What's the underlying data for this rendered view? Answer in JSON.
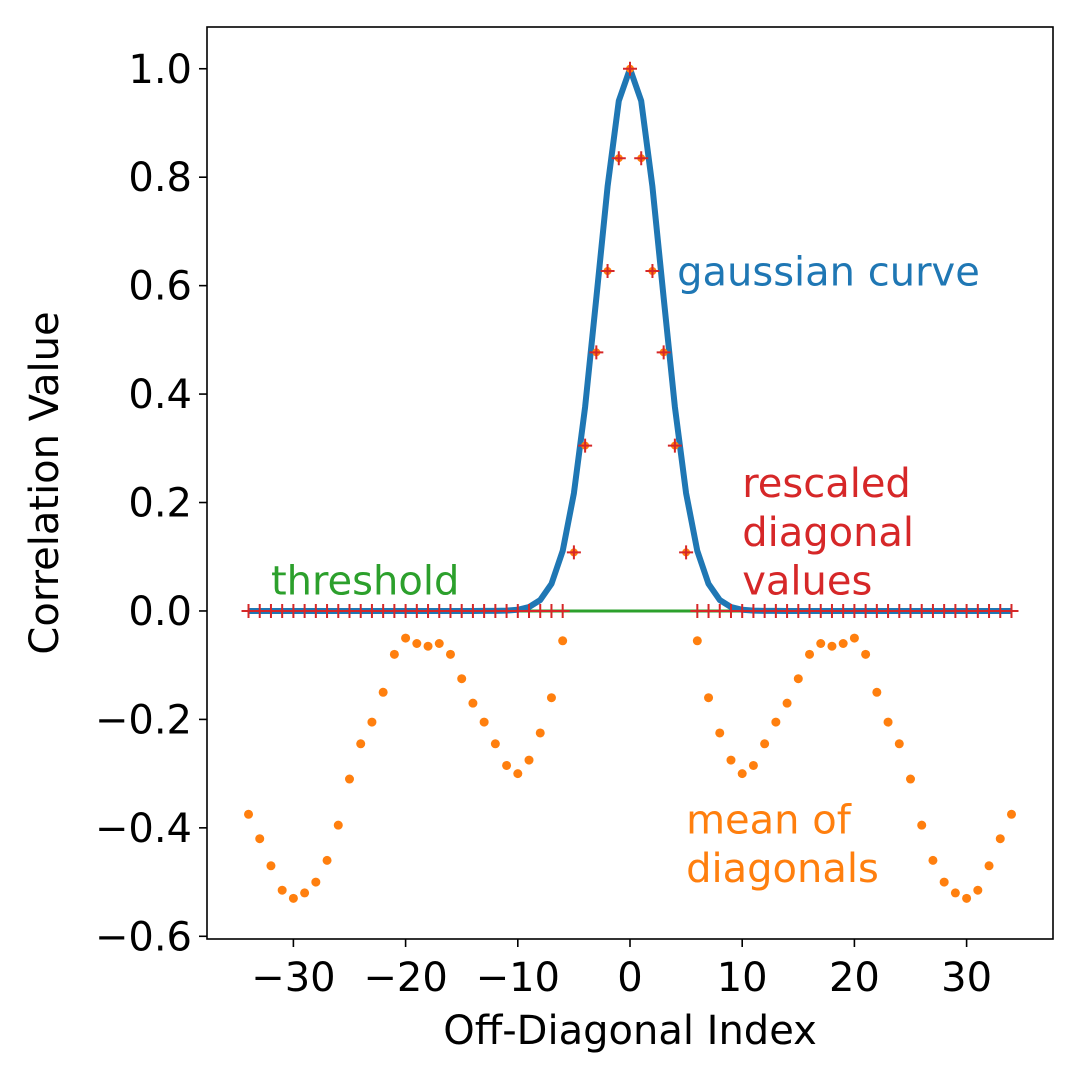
{
  "chart_data": {
    "type": "line",
    "xlabel": "Off-Diagonal Index",
    "ylabel": "Correlation Value",
    "xlim": [
      -37.7,
      37.7
    ],
    "ylim": [
      -0.605,
      1.077
    ],
    "xticks": [
      -30,
      -20,
      -10,
      0,
      10,
      20,
      30
    ],
    "xtick_labels": [
      "−30",
      "−20",
      "−10",
      "0",
      "10",
      "20",
      "30"
    ],
    "yticks": [
      -0.6,
      -0.4,
      -0.2,
      0.0,
      0.2,
      0.4,
      0.6,
      0.8,
      1.0
    ],
    "ytick_labels": [
      "−0.6",
      "−0.4",
      "−0.2",
      "0.0",
      "0.2",
      "0.4",
      "0.6",
      "0.8",
      "1.0"
    ],
    "grid": false,
    "series": [
      {
        "name": "gaussian curve",
        "style": "line",
        "color": "#1f77b4",
        "sigma": 2.86,
        "x": [
          -34,
          -33,
          -32,
          -31,
          -30,
          -29,
          -28,
          -27,
          -26,
          -25,
          -24,
          -23,
          -22,
          -21,
          -20,
          -19,
          -18,
          -17,
          -16,
          -15,
          -14,
          -13,
          -12,
          -11,
          -10,
          -9,
          -8,
          -7,
          -6,
          -5,
          -4,
          -3,
          -2,
          -1,
          0,
          1,
          2,
          3,
          4,
          5,
          6,
          7,
          8,
          9,
          10,
          11,
          12,
          13,
          14,
          15,
          16,
          17,
          18,
          19,
          20,
          21,
          22,
          23,
          24,
          25,
          26,
          27,
          28,
          29,
          30,
          31,
          32,
          33,
          34
        ]
      },
      {
        "name": "rescaled diagonal values",
        "style": "markers-plus",
        "color": "#d62728",
        "fill": "#ff7f0e",
        "x_nonzero": [
          -5,
          -4,
          -3,
          -2,
          -1,
          0,
          1,
          2,
          3,
          4,
          5
        ],
        "y_nonzero": [
          0.108,
          0.305,
          0.477,
          0.627,
          0.835,
          1.0,
          0.835,
          0.627,
          0.477,
          0.305,
          0.108
        ],
        "x_zero_ranges": [
          [
            -34,
            -6
          ],
          [
            6,
            34
          ]
        ]
      },
      {
        "name": "mean of diagonals",
        "style": "dots",
        "color": "#ff7f0e",
        "x": [
          -34,
          -33,
          -32,
          -31,
          -30,
          -29,
          -28,
          -27,
          -26,
          -25,
          -24,
          -23,
          -22,
          -21,
          -20,
          -19,
          -18,
          -17,
          -16,
          -15,
          -14,
          -13,
          -12,
          -11,
          -10,
          -9,
          -8,
          -7,
          -6
        ],
        "y": [
          -0.375,
          -0.42,
          -0.47,
          -0.515,
          -0.53,
          -0.52,
          -0.5,
          -0.46,
          -0.395,
          -0.31,
          -0.245,
          -0.205,
          -0.15,
          -0.08,
          -0.05,
          -0.06,
          -0.065,
          -0.06,
          -0.08,
          -0.125,
          -0.17,
          -0.205,
          -0.245,
          -0.285,
          -0.3,
          -0.275,
          -0.225,
          -0.16,
          -0.055
        ]
      },
      {
        "name": "threshold",
        "style": "hline",
        "color": "#2ca02c",
        "y": 0.0,
        "x_range": [
          -34,
          34
        ]
      }
    ],
    "annotations": [
      {
        "text": "gaussian curve",
        "color": "#1f77b4",
        "x": 4.2,
        "y": 0.6
      },
      {
        "text": "rescaled",
        "color": "#d62728",
        "x": 10,
        "y": 0.21
      },
      {
        "text": "diagonal",
        "color": "#d62728",
        "x": 10,
        "y": 0.12
      },
      {
        "text": "values",
        "color": "#d62728",
        "x": 10,
        "y": 0.03
      },
      {
        "text": "threshold",
        "color": "#2ca02c",
        "x": -32,
        "y": 0.03
      },
      {
        "text": "mean of",
        "color": "#ff7f0e",
        "x": 5,
        "y": -0.41
      },
      {
        "text": "diagonals",
        "color": "#ff7f0e",
        "x": 5,
        "y": -0.5
      }
    ]
  }
}
